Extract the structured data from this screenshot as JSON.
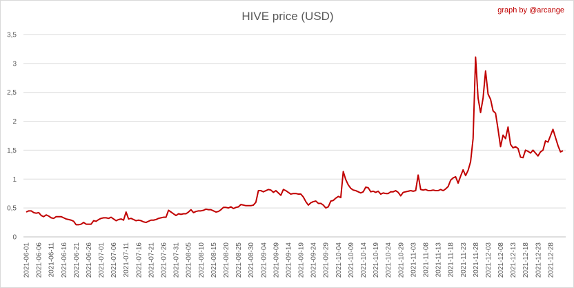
{
  "chart_data": {
    "type": "line",
    "title": "HIVE price (USD)",
    "credit": "graph by @arcange",
    "xlabel": "",
    "ylabel": "",
    "ylim": [
      0,
      3.5
    ],
    "y_ticks": [
      0,
      0.5,
      1,
      1.5,
      2,
      2.5,
      3,
      3.5
    ],
    "y_tick_labels": [
      "0",
      "0,5",
      "1",
      "1,5",
      "2",
      "2,5",
      "3",
      "3,5"
    ],
    "grid": true,
    "legend": "none",
    "line_color": "#c00000",
    "grid_color": "#d9d9d9",
    "x_start": "2021-06-01",
    "x_end": "2021-12-31",
    "x_tick_labels": [
      "2021-06-01",
      "2021-06-06",
      "2021-06-11",
      "2021-06-16",
      "2021-06-21",
      "2021-06-26",
      "2021-07-01",
      "2021-07-06",
      "2021-07-11",
      "2021-07-16",
      "2021-07-21",
      "2021-07-26",
      "2021-07-31",
      "2021-08-05",
      "2021-08-10",
      "2021-08-15",
      "2021-08-20",
      "2021-08-25",
      "2021-08-30",
      "2021-09-04",
      "2021-09-09",
      "2021-09-14",
      "2021-09-19",
      "2021-09-24",
      "2021-09-29",
      "2021-10-04",
      "2021-10-09",
      "2021-10-14",
      "2021-10-19",
      "2021-10-24",
      "2021-10-29",
      "2021-11-03",
      "2021-11-08",
      "2021-11-13",
      "2021-11-18",
      "2021-11-23",
      "2021-11-28",
      "2021-12-03",
      "2021-12-08",
      "2021-12-13",
      "2021-12-18",
      "2021-12-23",
      "2021-12-28"
    ],
    "series": [
      {
        "name": "",
        "values": [
          0.43,
          0.45,
          0.45,
          0.42,
          0.41,
          0.42,
          0.37,
          0.35,
          0.38,
          0.36,
          0.33,
          0.32,
          0.35,
          0.35,
          0.35,
          0.33,
          0.31,
          0.3,
          0.29,
          0.27,
          0.21,
          0.21,
          0.22,
          0.25,
          0.22,
          0.22,
          0.22,
          0.28,
          0.27,
          0.3,
          0.32,
          0.33,
          0.33,
          0.32,
          0.34,
          0.31,
          0.28,
          0.3,
          0.31,
          0.29,
          0.43,
          0.31,
          0.32,
          0.3,
          0.28,
          0.29,
          0.28,
          0.26,
          0.25,
          0.27,
          0.29,
          0.29,
          0.3,
          0.32,
          0.33,
          0.34,
          0.34,
          0.46,
          0.43,
          0.4,
          0.37,
          0.4,
          0.39,
          0.4,
          0.4,
          0.43,
          0.47,
          0.42,
          0.44,
          0.45,
          0.45,
          0.46,
          0.48,
          0.47,
          0.47,
          0.45,
          0.43,
          0.44,
          0.47,
          0.51,
          0.51,
          0.5,
          0.52,
          0.49,
          0.51,
          0.52,
          0.56,
          0.55,
          0.54,
          0.54,
          0.54,
          0.55,
          0.6,
          0.8,
          0.8,
          0.78,
          0.8,
          0.82,
          0.81,
          0.77,
          0.8,
          0.76,
          0.72,
          0.82,
          0.8,
          0.77,
          0.74,
          0.75,
          0.75,
          0.74,
          0.74,
          0.69,
          0.61,
          0.55,
          0.59,
          0.61,
          0.62,
          0.58,
          0.58,
          0.55,
          0.5,
          0.52,
          0.62,
          0.63,
          0.67,
          0.7,
          0.68,
          1.13,
          0.99,
          0.9,
          0.84,
          0.81,
          0.8,
          0.78,
          0.76,
          0.78,
          0.86,
          0.85,
          0.78,
          0.79,
          0.77,
          0.79,
          0.74,
          0.76,
          0.75,
          0.75,
          0.78,
          0.78,
          0.8,
          0.77,
          0.71,
          0.77,
          0.78,
          0.79,
          0.8,
          0.79,
          0.8,
          1.07,
          0.82,
          0.81,
          0.82,
          0.8,
          0.8,
          0.81,
          0.8,
          0.8,
          0.82,
          0.8,
          0.83,
          0.87,
          0.98,
          1.02,
          1.04,
          0.93,
          1.05,
          1.16,
          1.06,
          1.15,
          1.3,
          1.7,
          3.11,
          2.4,
          2.15,
          2.4,
          2.87,
          2.47,
          2.38,
          2.18,
          2.14,
          1.86,
          1.56,
          1.76,
          1.7,
          1.9,
          1.6,
          1.54,
          1.56,
          1.53,
          1.38,
          1.37,
          1.5,
          1.48,
          1.45,
          1.5,
          1.45,
          1.4,
          1.47,
          1.5,
          1.66,
          1.64,
          1.75,
          1.86,
          1.72,
          1.58,
          1.47,
          1.49
        ]
      }
    ]
  }
}
